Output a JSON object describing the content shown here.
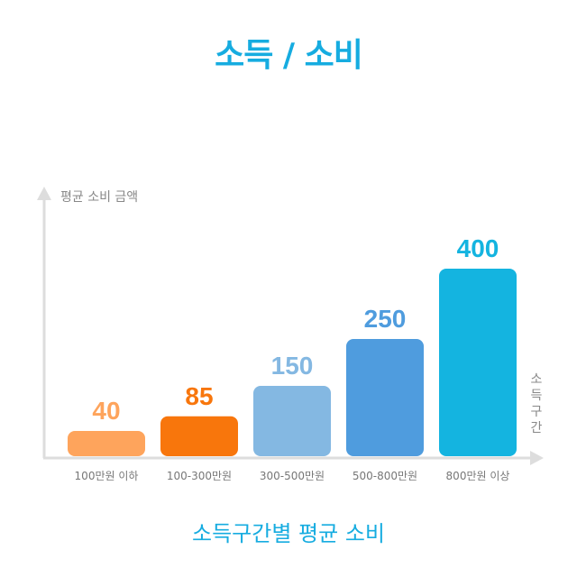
{
  "title": "소득 / 소비",
  "caption": "소득구간별 평균 소비",
  "chart_data": {
    "type": "bar",
    "categories": [
      "100만원 이하",
      "100-300만원",
      "300-500만원",
      "500-800만원",
      "800만원 이상"
    ],
    "values": [
      40,
      85,
      150,
      250,
      400
    ],
    "colors": [
      "#fea45c",
      "#f8760c",
      "#84b8e2",
      "#4f9cde",
      "#14b4e0"
    ],
    "ylabel": "평균 소비 금액",
    "xlabel": "소득구간",
    "axis_color": "#dddddd",
    "grid": false
  }
}
